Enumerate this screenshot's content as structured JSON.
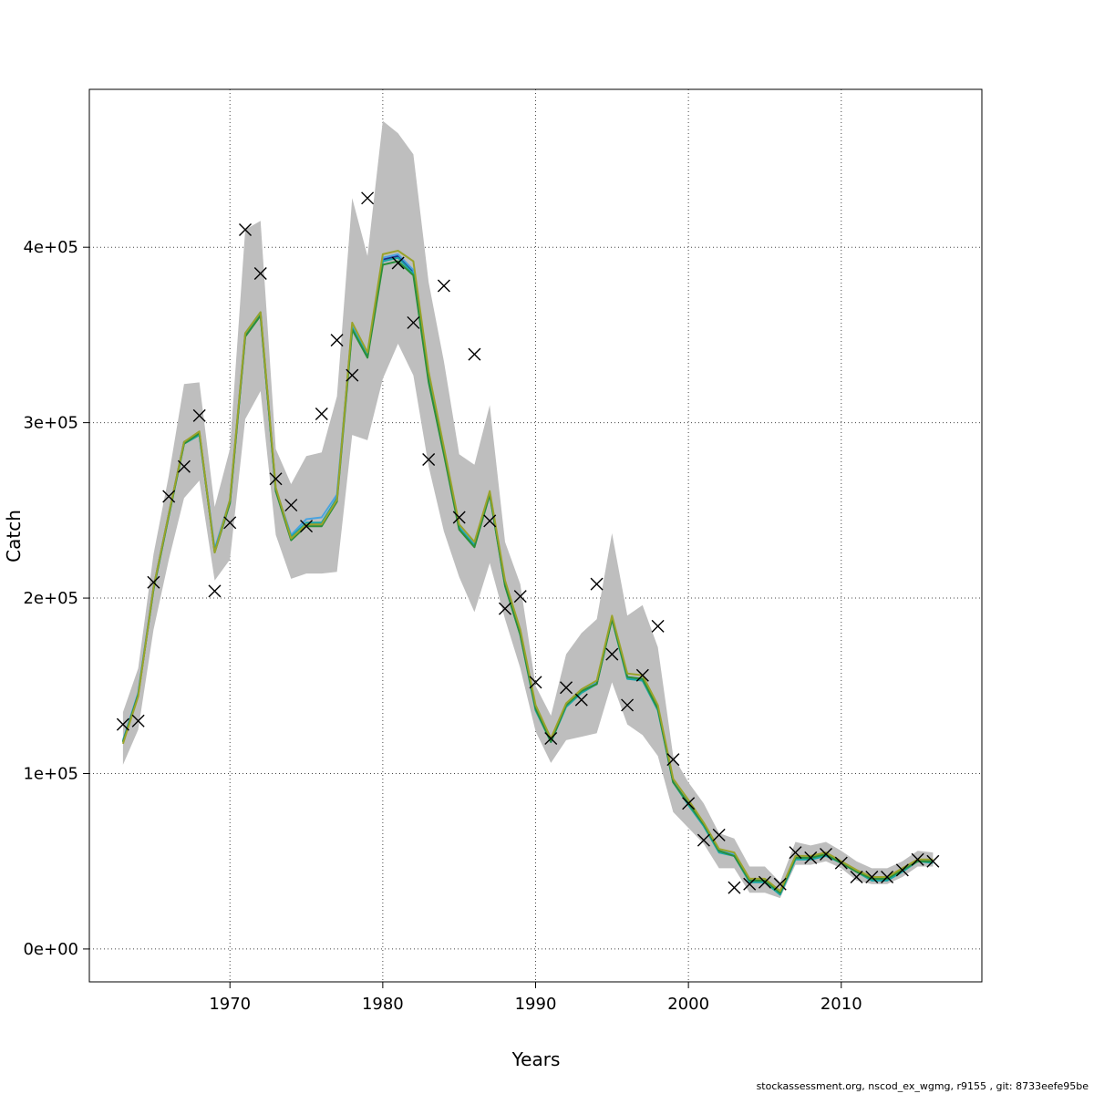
{
  "chart_data": {
    "type": "line",
    "xlabel": "Years",
    "ylabel": "Catch",
    "xlim": [
      1960.8,
      2019.2
    ],
    "ylim": [
      -18750,
      490000
    ],
    "x_ticks": [
      1970,
      1980,
      1990,
      2000,
      2010
    ],
    "x_tick_labels": [
      "1970",
      "1980",
      "1990",
      "2000",
      "2010"
    ],
    "y_ticks": [
      0,
      100000,
      200000,
      300000,
      400000
    ],
    "y_tick_labels": [
      "0e+00",
      "1e+05",
      "2e+05",
      "3e+05",
      "4e+05"
    ],
    "grid": true,
    "years": [
      1963,
      1964,
      1965,
      1966,
      1967,
      1968,
      1969,
      1970,
      1971,
      1972,
      1973,
      1974,
      1975,
      1976,
      1977,
      1978,
      1979,
      1980,
      1981,
      1982,
      1983,
      1984,
      1985,
      1986,
      1987,
      1988,
      1989,
      1990,
      1991,
      1992,
      1993,
      1994,
      1995,
      1996,
      1997,
      1998,
      1999,
      2000,
      2001,
      2002,
      2003,
      2004,
      2005,
      2006,
      2007,
      2008,
      2009,
      2010,
      2011,
      2012,
      2013,
      2014,
      2015,
      2016
    ],
    "band_upper": [
      135000,
      160000,
      225000,
      270000,
      322000,
      323000,
      252000,
      285000,
      410000,
      415000,
      285000,
      265000,
      281000,
      283000,
      315000,
      428000,
      395000,
      472000,
      465000,
      453000,
      380000,
      335000,
      282000,
      276000,
      310000,
      232000,
      208000,
      150000,
      133000,
      168000,
      180000,
      188000,
      237000,
      190000,
      196000,
      172000,
      110000,
      95000,
      83000,
      66000,
      63000,
      47000,
      47000,
      38000,
      61000,
      59000,
      61000,
      56000,
      50000,
      46000,
      46000,
      50000,
      56000,
      55000
    ],
    "band_lower": [
      105000,
      125000,
      182000,
      222000,
      257000,
      267000,
      210000,
      222000,
      302000,
      318000,
      236000,
      211000,
      214000,
      214000,
      215000,
      293000,
      290000,
      325000,
      345000,
      327000,
      275000,
      238000,
      212000,
      192000,
      220000,
      188000,
      160000,
      124000,
      106000,
      119000,
      121000,
      123000,
      152000,
      128000,
      122000,
      110000,
      78000,
      69000,
      60000,
      46000,
      46000,
      32000,
      32000,
      29000,
      48000,
      48000,
      50000,
      46000,
      39000,
      37000,
      37000,
      41000,
      47000,
      47000
    ],
    "series": [
      {
        "name": "",
        "color": "#1f2e8c",
        "values": [
          118000,
          145000,
          206000,
          248000,
          289000,
          294000,
          227000,
          255000,
          350000,
          362000,
          262000,
          235000,
          242000,
          242000,
          257000,
          355000,
          339000,
          393000,
          395000,
          386000,
          325000,
          284000,
          240000,
          230000,
          260000,
          208000,
          180000,
          137000,
          118000,
          139000,
          147000,
          151000,
          189000,
          155000,
          153000,
          137000,
          95000,
          83000,
          71000,
          56000,
          53000,
          39000,
          38000,
          32000,
          52000,
          52000,
          54000,
          49000,
          44000,
          40000,
          41000,
          45000,
          51000,
          50000
        ]
      },
      {
        "name": "",
        "color": "#4aa3e0",
        "values": [
          119000,
          146000,
          206000,
          248000,
          289000,
          294000,
          228000,
          256000,
          351000,
          363000,
          262000,
          236000,
          245000,
          246000,
          259000,
          355000,
          339000,
          394000,
          396000,
          387000,
          326000,
          284000,
          241000,
          231000,
          260000,
          208000,
          180000,
          137000,
          118000,
          139000,
          147000,
          152000,
          189000,
          155000,
          154000,
          137000,
          95000,
          83000,
          71000,
          56000,
          54000,
          39000,
          39000,
          32000,
          52000,
          52000,
          54000,
          49000,
          44000,
          40000,
          40000,
          45000,
          50000,
          50000
        ]
      },
      {
        "name": "",
        "color": "#1aa5a5",
        "values": [
          118000,
          145000,
          205000,
          247000,
          288000,
          293000,
          227000,
          255000,
          350000,
          362000,
          261000,
          235000,
          243000,
          243000,
          257000,
          354000,
          338000,
          392000,
          394000,
          385000,
          324000,
          283000,
          240000,
          230000,
          259000,
          207000,
          179000,
          136000,
          118000,
          138000,
          146000,
          151000,
          188000,
          154000,
          153000,
          136000,
          95000,
          82000,
          70000,
          55000,
          53000,
          38000,
          38000,
          31000,
          51000,
          51000,
          53000,
          49000,
          44000,
          39000,
          39000,
          44000,
          50000,
          49000
        ]
      },
      {
        "name": "",
        "color": "#2a8f3a",
        "values": [
          118000,
          145000,
          205000,
          247000,
          288000,
          294000,
          226000,
          254000,
          349000,
          361000,
          261000,
          233000,
          241000,
          241000,
          255000,
          353000,
          337000,
          390000,
          392000,
          384000,
          323000,
          282000,
          239000,
          229000,
          259000,
          207000,
          179000,
          137000,
          118000,
          139000,
          147000,
          151000,
          188000,
          155000,
          154000,
          137000,
          95000,
          83000,
          71000,
          56000,
          53000,
          39000,
          39000,
          32000,
          52000,
          52000,
          54000,
          49000,
          44000,
          40000,
          40000,
          45000,
          50000,
          50000
        ]
      },
      {
        "name": "",
        "color": "#9aa32a",
        "values": [
          117000,
          144000,
          206000,
          248000,
          289000,
          295000,
          226000,
          256000,
          351000,
          363000,
          263000,
          234000,
          242000,
          242000,
          256000,
          357000,
          340000,
          396000,
          398000,
          392000,
          329000,
          286000,
          242000,
          232000,
          261000,
          210000,
          182000,
          139000,
          120000,
          140000,
          148000,
          153000,
          190000,
          157000,
          156000,
          139000,
          97000,
          85000,
          72000,
          57000,
          55000,
          40000,
          40000,
          33000,
          53000,
          53000,
          55000,
          50000,
          45000,
          41000,
          41000,
          46000,
          51000,
          51000
        ]
      }
    ],
    "observed": [
      128000,
      130000,
      209000,
      258000,
      275000,
      304000,
      204000,
      243000,
      410000,
      385000,
      268000,
      253000,
      241000,
      305000,
      347000,
      327000,
      428000,
      null,
      391000,
      357000,
      279000,
      378000,
      246000,
      339000,
      244000,
      194000,
      201000,
      152000,
      120000,
      149000,
      142000,
      208000,
      168000,
      139000,
      156000,
      184000,
      108000,
      83000,
      62000,
      65000,
      35000,
      37000,
      38000,
      37000,
      55000,
      52000,
      54000,
      49000,
      41000,
      41000,
      41000,
      45000,
      51000,
      50000
    ]
  },
  "footer_text": "stockassessment.org, nscod_ex_wgmg, r9155 , git: 8733eefe95be"
}
